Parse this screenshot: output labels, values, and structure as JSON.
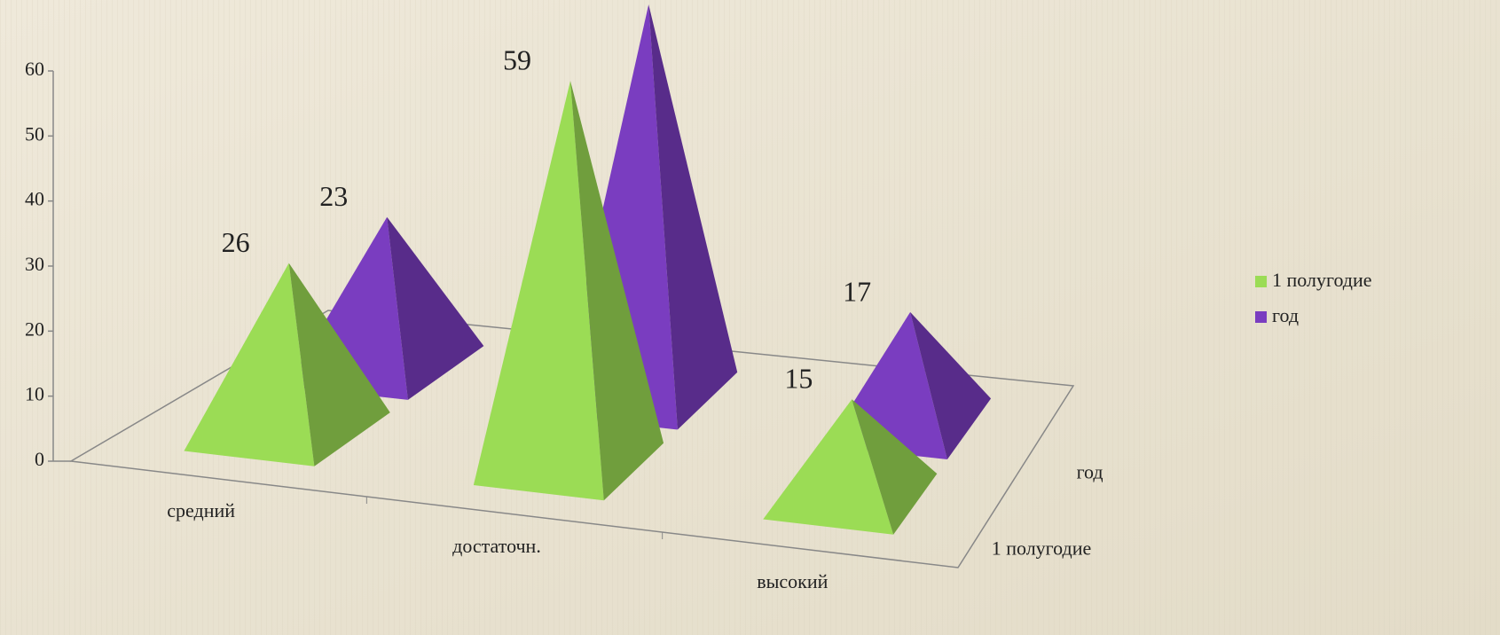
{
  "chart_data": {
    "type": "pyramid3d",
    "categories": [
      "средний",
      "достаточн.",
      "высокий"
    ],
    "series": [
      {
        "name": "1 полугодие",
        "color": "#9bdc55",
        "values": [
          26,
          59,
          15
        ]
      },
      {
        "name": "год",
        "color": "#7a3dc0",
        "values": [
          23,
          60,
          17
        ]
      }
    ],
    "ylim": [
      0,
      60
    ],
    "yticks": [
      0,
      10,
      20,
      30,
      40,
      50,
      60
    ],
    "legend": "right"
  }
}
